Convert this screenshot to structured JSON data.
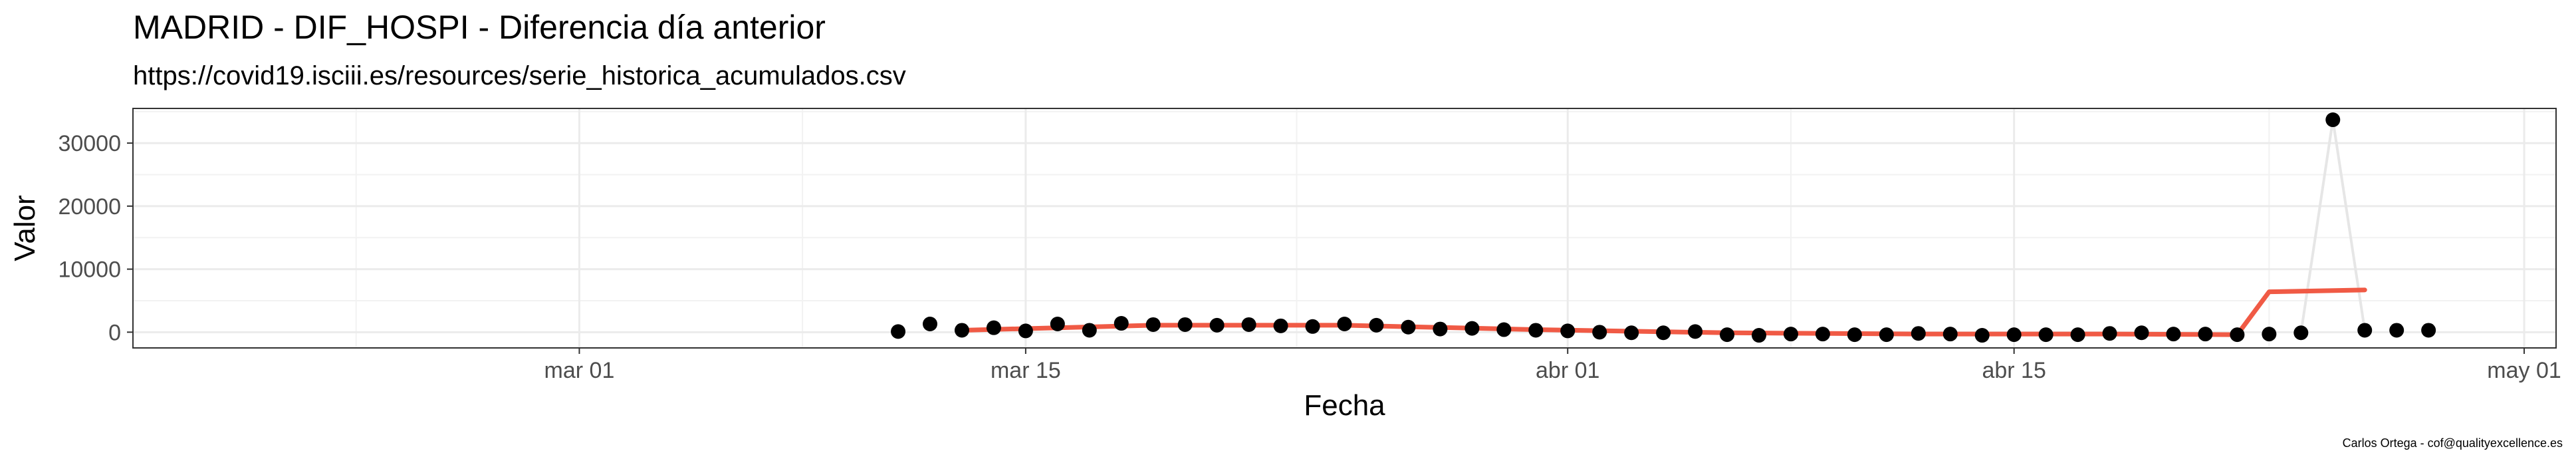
{
  "chart_data": {
    "type": "scatter",
    "title": "MADRID - DIF_HOSPI - Diferencia día anterior",
    "subtitle": "https://covid19.isciii.es/resources/serie_historica_acumulados.csv",
    "caption": "Carlos Ortega - cof@qualityexcellence.es",
    "xlabel": "Fecha",
    "ylabel": "Valor",
    "xlim": [
      "2020-02-16",
      "2020-05-02"
    ],
    "ylim": [
      -2500,
      35500
    ],
    "x_ticks": [
      {
        "date": "2020-03-01",
        "label": "mar 01"
      },
      {
        "date": "2020-03-15",
        "label": "mar 15"
      },
      {
        "date": "2020-04-01",
        "label": "abr 01"
      },
      {
        "date": "2020-04-15",
        "label": "abr 15"
      },
      {
        "date": "2020-05-01",
        "label": "may 01"
      }
    ],
    "y_ticks": [
      0,
      10000,
      20000,
      30000
    ],
    "grid": true,
    "colors": {
      "points": "#000000",
      "trend": "#f05a45",
      "connector": "#e6e6e6",
      "grid": "#ebebeb",
      "frame": "#333333"
    },
    "points": [
      {
        "x": "2020-03-11",
        "y": 100
      },
      {
        "x": "2020-03-12",
        "y": 1300
      },
      {
        "x": "2020-03-13",
        "y": 300
      },
      {
        "x": "2020-03-14",
        "y": 700
      },
      {
        "x": "2020-03-15",
        "y": 200
      },
      {
        "x": "2020-03-16",
        "y": 1300
      },
      {
        "x": "2020-03-17",
        "y": 300
      },
      {
        "x": "2020-03-18",
        "y": 1400
      },
      {
        "x": "2020-03-19",
        "y": 1200
      },
      {
        "x": "2020-03-20",
        "y": 1200
      },
      {
        "x": "2020-03-21",
        "y": 1100
      },
      {
        "x": "2020-03-22",
        "y": 1200
      },
      {
        "x": "2020-03-23",
        "y": 1000
      },
      {
        "x": "2020-03-24",
        "y": 900
      },
      {
        "x": "2020-03-25",
        "y": 1300
      },
      {
        "x": "2020-03-26",
        "y": 1100
      },
      {
        "x": "2020-03-27",
        "y": 800
      },
      {
        "x": "2020-03-28",
        "y": 500
      },
      {
        "x": "2020-03-29",
        "y": 600
      },
      {
        "x": "2020-03-30",
        "y": 400
      },
      {
        "x": "2020-03-31",
        "y": 300
      },
      {
        "x": "2020-04-01",
        "y": 200
      },
      {
        "x": "2020-04-02",
        "y": 0
      },
      {
        "x": "2020-04-03",
        "y": -100
      },
      {
        "x": "2020-04-04",
        "y": -100
      },
      {
        "x": "2020-04-05",
        "y": 100
      },
      {
        "x": "2020-04-06",
        "y": -400
      },
      {
        "x": "2020-04-07",
        "y": -500
      },
      {
        "x": "2020-04-08",
        "y": -300
      },
      {
        "x": "2020-04-09",
        "y": -300
      },
      {
        "x": "2020-04-10",
        "y": -400
      },
      {
        "x": "2020-04-11",
        "y": -400
      },
      {
        "x": "2020-04-12",
        "y": -200
      },
      {
        "x": "2020-04-13",
        "y": -300
      },
      {
        "x": "2020-04-14",
        "y": -500
      },
      {
        "x": "2020-04-15",
        "y": -400
      },
      {
        "x": "2020-04-16",
        "y": -400
      },
      {
        "x": "2020-04-17",
        "y": -400
      },
      {
        "x": "2020-04-18",
        "y": -200
      },
      {
        "x": "2020-04-19",
        "y": -100
      },
      {
        "x": "2020-04-20",
        "y": -300
      },
      {
        "x": "2020-04-21",
        "y": -300
      },
      {
        "x": "2020-04-22",
        "y": -400
      },
      {
        "x": "2020-04-23",
        "y": -300
      },
      {
        "x": "2020-04-24",
        "y": -100
      },
      {
        "x": "2020-04-25",
        "y": 33700
      },
      {
        "x": "2020-04-26",
        "y": 300
      },
      {
        "x": "2020-04-27",
        "y": 300
      },
      {
        "x": "2020-04-28",
        "y": 300
      }
    ],
    "connector_line": [
      {
        "x": "2020-04-24",
        "y": -100
      },
      {
        "x": "2020-04-25",
        "y": 33700
      },
      {
        "x": "2020-04-26",
        "y": 300
      }
    ],
    "trend_line": [
      {
        "x": "2020-03-13",
        "y": 300
      },
      {
        "x": "2020-03-19",
        "y": 1100
      },
      {
        "x": "2020-03-25",
        "y": 1100
      },
      {
        "x": "2020-03-31",
        "y": 400
      },
      {
        "x": "2020-04-06",
        "y": -100
      },
      {
        "x": "2020-04-12",
        "y": -300
      },
      {
        "x": "2020-04-18",
        "y": -300
      },
      {
        "x": "2020-04-22",
        "y": -400
      },
      {
        "x": "2020-04-23",
        "y": 6400
      },
      {
        "x": "2020-04-26",
        "y": 6700
      }
    ]
  }
}
